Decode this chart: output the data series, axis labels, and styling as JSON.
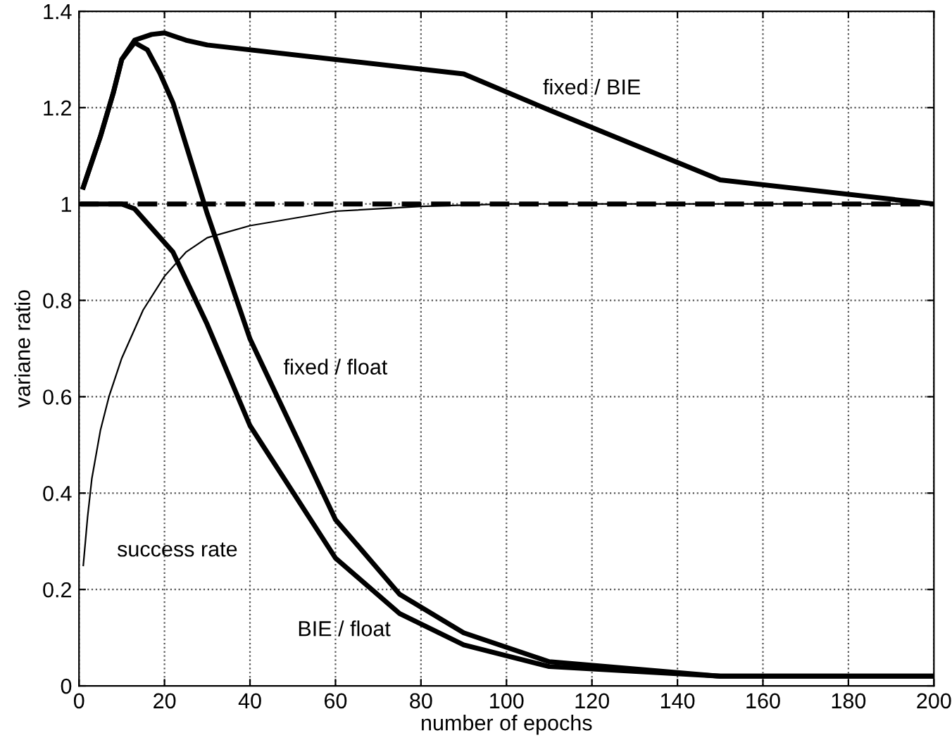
{
  "chart_data": {
    "type": "line",
    "xlabel": "number of epochs",
    "ylabel": "variane ratio",
    "xlim": [
      0,
      200
    ],
    "ylim": [
      0,
      1.4
    ],
    "xticks": [
      0,
      20,
      40,
      60,
      80,
      100,
      120,
      140,
      160,
      180,
      200
    ],
    "yticks": [
      0,
      0.2,
      0.4,
      0.6,
      0.8,
      1,
      1.2,
      1.4
    ],
    "grid": true,
    "line_style": "solid",
    "marker": "none",
    "series": [
      {
        "name": "fixed / BIE",
        "color": "#000000",
        "x": [
          1,
          5,
          8,
          10,
          13,
          17,
          20,
          25,
          30,
          60,
          90,
          110,
          150,
          200
        ],
        "values": [
          1.035,
          1.14,
          1.23,
          1.3,
          1.34,
          1.352,
          1.355,
          1.34,
          1.33,
          1.3,
          1.27,
          1.195,
          1.05,
          1.0
        ]
      },
      {
        "name": "fixed / float",
        "color": "#000000",
        "x": [
          1,
          5,
          8,
          10,
          13,
          16,
          19,
          22,
          30,
          40,
          60,
          75,
          90,
          110,
          150,
          200
        ],
        "values": [
          1.035,
          1.14,
          1.23,
          1.3,
          1.335,
          1.32,
          1.27,
          1.21,
          0.98,
          0.72,
          0.345,
          0.19,
          0.11,
          0.05,
          0.02,
          0.02
        ]
      },
      {
        "name": "BIE / float",
        "color": "#000000",
        "x": [
          1,
          10,
          13,
          16,
          22,
          30,
          40,
          60,
          75,
          90,
          110,
          150,
          200
        ],
        "values": [
          1.0,
          1.0,
          0.99,
          0.96,
          0.9,
          0.75,
          0.54,
          0.265,
          0.15,
          0.085,
          0.04,
          0.02,
          0.02
        ]
      },
      {
        "name": "success rate",
        "color": "#000000",
        "x": [
          1,
          2,
          3,
          5,
          7,
          10,
          15,
          20,
          25,
          30,
          40,
          60,
          80,
          100,
          200
        ],
        "values": [
          0.25,
          0.35,
          0.43,
          0.53,
          0.6,
          0.68,
          0.78,
          0.85,
          0.9,
          0.93,
          0.955,
          0.985,
          0.995,
          1.0,
          1.0
        ]
      }
    ],
    "ref_lines": [
      {
        "axis": "y",
        "value": 1,
        "color": "#000000",
        "line_style": "dashed"
      }
    ]
  }
}
